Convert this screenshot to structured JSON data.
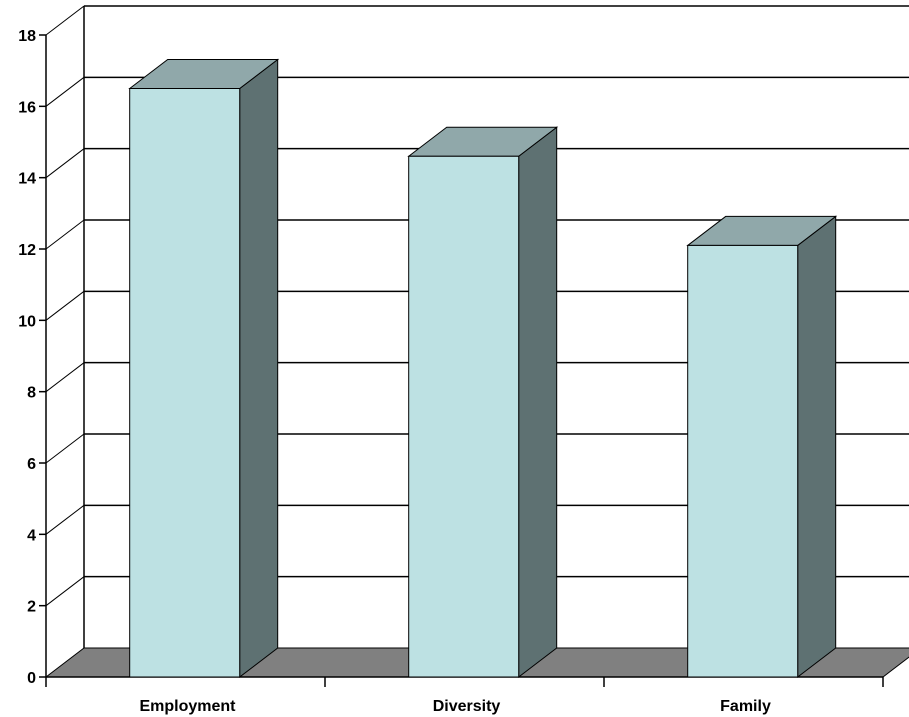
{
  "chart_data": {
    "type": "bar",
    "title": "",
    "xlabel": "",
    "ylabel": "",
    "categories": [
      "Employment",
      "Diversity",
      "Family"
    ],
    "values": [
      16.5,
      14.6,
      12.1
    ],
    "ylim": [
      0,
      18
    ],
    "yticks": [
      0,
      2,
      4,
      6,
      8,
      10,
      12,
      14,
      16,
      18
    ],
    "grid": true,
    "legend": "none",
    "colors": {
      "bar_front": "#bde1e3",
      "bar_top": "#90a8aa",
      "bar_side": "#5e7172",
      "floor": "#808080",
      "grid": "#000000"
    }
  }
}
